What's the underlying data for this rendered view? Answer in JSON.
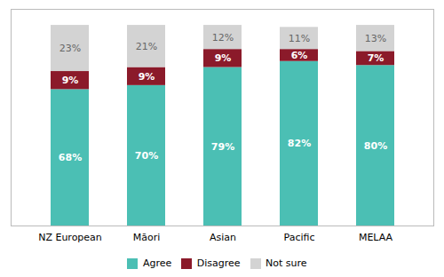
{
  "chart_data": {
    "type": "bar",
    "categories": [
      "NZ European",
      "Māori",
      "Asian",
      "Pacific",
      "MELAA"
    ],
    "series": [
      {
        "name": "Agree",
        "color": "#4BBFB4",
        "values": [
          68,
          70,
          79,
          82,
          80
        ],
        "value_labels": [
          "68%",
          "70%",
          "79%",
          "82%",
          "80%"
        ]
      },
      {
        "name": "Disagree",
        "color": "#8B1A2A",
        "values": [
          9,
          9,
          9,
          6,
          7
        ],
        "value_labels": [
          "9%",
          "9%",
          "9%",
          "6%",
          "7%"
        ]
      },
      {
        "name": "Not sure",
        "color": "#D3D3D3",
        "values": [
          23,
          21,
          12,
          11,
          13
        ],
        "value_labels": [
          "23%",
          "21%",
          "12%",
          "11%",
          "13%"
        ]
      }
    ],
    "stacked": true,
    "ylim": [
      0,
      108
    ],
    "data_labels": true,
    "tick_labels": "x",
    "legend": "bottom",
    "grid": false
  }
}
